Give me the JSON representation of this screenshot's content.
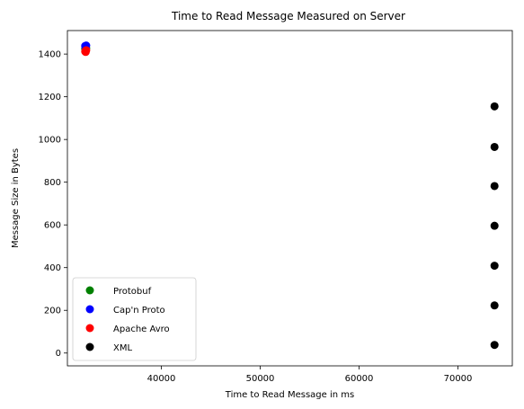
{
  "chart_data": {
    "type": "scatter",
    "title": "Time to Read Message Measured on Server",
    "xlabel": "Time to Read Message in ms",
    "ylabel": "Message Size in Bytes",
    "xlim": [
      30500,
      75500
    ],
    "ylim": [
      -60,
      1510
    ],
    "x_ticks": [
      40000,
      50000,
      60000,
      70000
    ],
    "y_ticks": [
      0,
      200,
      400,
      600,
      800,
      1000,
      1200,
      1400
    ],
    "grid": false,
    "legend_position": "lower-left",
    "series": [
      {
        "name": "Protobuf",
        "color": "#008000",
        "points": [
          [
            32300,
            1425
          ],
          [
            32350,
            1420
          ],
          [
            32400,
            1428
          ]
        ]
      },
      {
        "name": "Cap'n Proto",
        "color": "#0000ff",
        "points": [
          [
            32300,
            1438
          ],
          [
            32350,
            1432
          ],
          [
            32400,
            1440
          ],
          [
            32350,
            1426
          ]
        ]
      },
      {
        "name": "Apache Avro",
        "color": "#ff0000",
        "points": [
          [
            32300,
            1412
          ],
          [
            32350,
            1415
          ],
          [
            32400,
            1418
          ],
          [
            32350,
            1410
          ]
        ]
      },
      {
        "name": "XML",
        "color": "#000000",
        "points": [
          [
            73700,
            1155
          ],
          [
            73700,
            965
          ],
          [
            73700,
            782
          ],
          [
            73700,
            596
          ],
          [
            73700,
            409
          ],
          [
            73700,
            223
          ],
          [
            73700,
            38
          ]
        ]
      }
    ]
  }
}
